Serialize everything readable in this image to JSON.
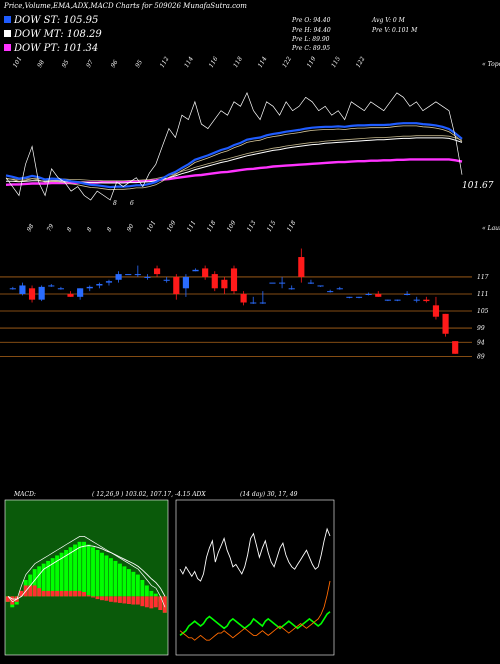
{
  "header": {
    "title": "Price,Volume,EMA,ADX,MACD Charts for 509026  MunafaSutra.com"
  },
  "legend": [
    {
      "label": "DOW ST: 105.95",
      "color": "#1f5cff"
    },
    {
      "label": "DOW MT: 108.29",
      "color": "#ffffff"
    },
    {
      "label": "DOW PT: 101.34",
      "color": "#ff33ff"
    }
  ],
  "price_info": {
    "open": "Pre  O: 94.40",
    "high": "Pre  H: 94.40",
    "low": "Pre  L: 89.90",
    "close": "Pre  C: 89.95",
    "avg_vol": "Avg V: 0  M",
    "vol": "Pre  V: 0.101 M"
  },
  "colors": {
    "up": "#2a6cff",
    "down": "#ff1a1a",
    "ema_short": "#1f5cff",
    "ema_long": "#ff33ff",
    "gridline": "#b0661a",
    "macd_bg": "#0a5a0a",
    "adx_white": "#ffffff",
    "adx_green": "#00ff00",
    "adx_orange": "#ff6a00"
  },
  "chart_data": [
    {
      "type": "line",
      "name": "ema-panel",
      "top_labels": [
        "101",
        "98",
        "95",
        "97",
        "96",
        "95",
        "112",
        "114",
        "116",
        "118",
        "114",
        "122",
        "119",
        "115",
        "122"
      ],
      "top_right_label": "« Topo",
      "last_price_label": "101.67",
      "mid_labels": [
        "8",
        "6"
      ],
      "x": [
        0,
        1,
        2,
        3,
        4,
        5,
        6,
        7,
        8,
        9,
        10,
        11,
        12,
        13,
        14,
        15,
        16,
        17,
        18,
        19,
        20,
        21,
        22,
        23,
        24,
        25,
        26,
        27,
        28,
        29,
        30,
        31,
        32,
        33,
        34,
        35,
        36,
        37,
        38,
        39,
        40,
        41,
        42,
        43,
        44,
        45,
        46,
        47,
        48,
        49,
        50,
        51,
        52,
        53,
        54,
        55,
        56,
        57,
        58,
        59,
        60,
        61,
        62,
        63,
        64,
        65,
        66,
        67,
        68,
        69,
        70
      ],
      "price": [
        101,
        99,
        97,
        104,
        108,
        100,
        97,
        103,
        101,
        100,
        98,
        99,
        97,
        96,
        98,
        97,
        96,
        100,
        99,
        100,
        101,
        99,
        102,
        104,
        108,
        112,
        110,
        115,
        114,
        118,
        113,
        112,
        114,
        116,
        115,
        118,
        117,
        120,
        116,
        114,
        118,
        117,
        115,
        118,
        116,
        117,
        119,
        118,
        116,
        117,
        115,
        116,
        114,
        118,
        117,
        116,
        118,
        117,
        116,
        118,
        120,
        119,
        117,
        118,
        116,
        117,
        118,
        117,
        116,
        110,
        101.67
      ],
      "ema_short": [
        101.5,
        101.2,
        100.8,
        101,
        101.4,
        101.1,
        100.6,
        100.8,
        100.7,
        100.5,
        100.2,
        100,
        99.7,
        99.4,
        99.3,
        99.1,
        98.9,
        99,
        99,
        99.1,
        99.3,
        99.3,
        99.6,
        100,
        100.8,
        101.7,
        102.3,
        103.2,
        104,
        105,
        105.5,
        106,
        106.6,
        107.2,
        107.6,
        108.3,
        108.8,
        109.5,
        109.8,
        110,
        110.5,
        110.8,
        111,
        111.3,
        111.5,
        111.7,
        112,
        112.2,
        112.3,
        112.4,
        112.4,
        112.5,
        112.4,
        112.6,
        112.7,
        112.7,
        112.8,
        112.8,
        112.8,
        112.9,
        113.1,
        113.2,
        113.2,
        113.2,
        113,
        112.9,
        112.7,
        112.4,
        111.9,
        110.9,
        109.7
      ],
      "ema_mid": [
        100.2,
        100.2,
        100.1,
        100.2,
        100.3,
        100.3,
        100.2,
        100.3,
        100.3,
        100.2,
        100.1,
        100.1,
        100,
        99.9,
        99.9,
        99.8,
        99.8,
        99.8,
        99.8,
        99.9,
        99.9,
        100,
        100.1,
        100.3,
        100.6,
        101,
        101.4,
        101.9,
        102.3,
        102.8,
        103.2,
        103.6,
        104,
        104.4,
        104.7,
        105.1,
        105.5,
        105.9,
        106.2,
        106.5,
        106.8,
        107.1,
        107.3,
        107.6,
        107.8,
        108,
        108.2,
        108.4,
        108.5,
        108.7,
        108.8,
        108.9,
        109,
        109.1,
        109.2,
        109.3,
        109.4,
        109.5,
        109.5,
        109.6,
        109.7,
        109.8,
        109.8,
        109.9,
        109.9,
        109.9,
        109.9,
        109.9,
        109.8,
        109.4,
        108.9
      ],
      "ema_long": [
        99.4,
        99.5,
        99.5,
        99.6,
        99.7,
        99.7,
        99.7,
        99.8,
        99.8,
        99.8,
        99.8,
        99.9,
        99.9,
        99.9,
        99.9,
        100,
        100,
        100,
        100.1,
        100.1,
        100.2,
        100.2,
        100.3,
        100.4,
        100.6,
        100.7,
        100.9,
        101.1,
        101.3,
        101.5,
        101.6,
        101.8,
        102,
        102.2,
        102.3,
        102.5,
        102.7,
        102.9,
        103,
        103.2,
        103.3,
        103.5,
        103.6,
        103.7,
        103.8,
        103.9,
        104,
        104.1,
        104.2,
        104.3,
        104.4,
        104.5,
        104.5,
        104.6,
        104.7,
        104.7,
        104.8,
        104.8,
        104.9,
        104.9,
        105,
        105,
        105.1,
        105.1,
        105.1,
        105.1,
        105.1,
        105.1,
        105.1,
        104.9,
        104.6
      ],
      "ylim": [
        96,
        124
      ]
    },
    {
      "type": "candlestick",
      "name": "price-candles",
      "top_labels": [
        "98",
        "79",
        "8",
        "8",
        "8",
        "90",
        "101",
        "109",
        "111",
        "118",
        "109",
        "113",
        "115",
        "118"
      ],
      "top_right_label": "« Lauro",
      "gridlines": [
        117,
        111,
        105,
        99,
        94,
        89
      ],
      "candles": [
        {
          "o": 113,
          "h": 113.5,
          "l": 112.5,
          "c": 113
        },
        {
          "o": 111,
          "h": 115,
          "l": 110.5,
          "c": 114
        },
        {
          "o": 113,
          "h": 114,
          "l": 108,
          "c": 109
        },
        {
          "o": 109,
          "h": 114,
          "l": 108.5,
          "c": 113.5
        },
        {
          "o": 114,
          "h": 114.5,
          "l": 113.5,
          "c": 114
        },
        {
          "o": 113,
          "h": 113.5,
          "l": 112.5,
          "c": 113
        },
        {
          "o": 111,
          "h": 112,
          "l": 110,
          "c": 110
        },
        {
          "o": 110,
          "h": 113,
          "l": 109,
          "c": 113
        },
        {
          "o": 113,
          "h": 114,
          "l": 112,
          "c": 113.5
        },
        {
          "o": 114,
          "h": 115,
          "l": 113,
          "c": 114.5
        },
        {
          "o": 115,
          "h": 116,
          "l": 114,
          "c": 115.5
        },
        {
          "o": 116,
          "h": 119,
          "l": 115,
          "c": 118
        },
        {
          "o": 118,
          "h": 118,
          "l": 118,
          "c": 118
        },
        {
          "o": 118,
          "h": 121,
          "l": 117,
          "c": 118
        },
        {
          "o": 117,
          "h": 118,
          "l": 116,
          "c": 117
        },
        {
          "o": 120,
          "h": 121,
          "l": 117,
          "c": 118
        },
        {
          "o": 116,
          "h": 117,
          "l": 115,
          "c": 116
        },
        {
          "o": 117,
          "h": 118,
          "l": 109,
          "c": 111
        },
        {
          "o": 113,
          "h": 118,
          "l": 110,
          "c": 117
        },
        {
          "o": 119,
          "h": 120,
          "l": 119,
          "c": 119.5
        },
        {
          "o": 120,
          "h": 121,
          "l": 116,
          "c": 117
        },
        {
          "o": 118,
          "h": 119,
          "l": 112,
          "c": 113
        },
        {
          "o": 116,
          "h": 117,
          "l": 111,
          "c": 113
        },
        {
          "o": 120,
          "h": 121,
          "l": 111,
          "c": 112
        },
        {
          "o": 111,
          "h": 112,
          "l": 107,
          "c": 108
        },
        {
          "o": 108,
          "h": 110,
          "l": 107.5,
          "c": 108
        },
        {
          "o": 108,
          "h": 112,
          "l": 107.5,
          "c": 108
        },
        {
          "o": 115,
          "h": 115,
          "l": 115,
          "c": 115
        },
        {
          "o": 115,
          "h": 117,
          "l": 113,
          "c": 115
        },
        {
          "o": 113,
          "h": 114,
          "l": 112.5,
          "c": 113
        },
        {
          "o": 124,
          "h": 127,
          "l": 115,
          "c": 117
        },
        {
          "o": 115,
          "h": 116,
          "l": 114.5,
          "c": 115
        },
        {
          "o": 114,
          "h": 114,
          "l": 113.5,
          "c": 114
        },
        {
          "o": 112,
          "h": 112.5,
          "l": 111.5,
          "c": 112
        },
        {
          "o": 113,
          "h": 113.5,
          "l": 112.5,
          "c": 113
        },
        {
          "o": 110,
          "h": 110,
          "l": 109.5,
          "c": 110
        },
        {
          "o": 110,
          "h": 110,
          "l": 109.5,
          "c": 110
        },
        {
          "o": 111,
          "h": 111.5,
          "l": 110.5,
          "c": 111
        },
        {
          "o": 111,
          "h": 112,
          "l": 110,
          "c": 110
        },
        {
          "o": 109,
          "h": 109,
          "l": 108.5,
          "c": 109
        },
        {
          "o": 109,
          "h": 109,
          "l": 108.5,
          "c": 109
        },
        {
          "o": 111,
          "h": 112,
          "l": 110.5,
          "c": 111
        },
        {
          "o": 109,
          "h": 110,
          "l": 108,
          "c": 109
        },
        {
          "o": 109,
          "h": 110,
          "l": 108,
          "c": 108.5
        },
        {
          "o": 107,
          "h": 110,
          "l": 102,
          "c": 103
        },
        {
          "o": 104,
          "h": 104,
          "l": 96,
          "c": 97
        },
        {
          "o": 94.4,
          "h": 94.4,
          "l": 89.9,
          "c": 89.95
        }
      ],
      "ylim": [
        86,
        130
      ]
    },
    {
      "type": "line",
      "name": "macd-panel",
      "label": "MACD:",
      "params": "( 12,26,9 ) 103.02,  107.17, -4.15 ADX",
      "macd": [
        -1,
        -2,
        -1.5,
        1,
        3,
        4,
        5,
        5.5,
        6,
        6.5,
        7,
        7.5,
        8,
        8.5,
        9,
        9.5,
        10,
        10,
        9.5,
        9,
        8.5,
        8,
        7.5,
        7,
        6.5,
        6,
        5.5,
        5,
        4.5,
        4,
        3,
        2,
        1,
        0.5,
        -1,
        -3
      ],
      "signal": [
        0,
        -0.5,
        -0.5,
        0,
        1,
        2,
        3,
        4,
        5,
        5.5,
        6,
        6.5,
        7,
        7.5,
        8,
        8.5,
        9,
        9.2,
        9.3,
        9.2,
        9,
        8.7,
        8.3,
        8,
        7.6,
        7.2,
        6.8,
        6.4,
        6,
        5.5,
        4.8,
        4,
        3.2,
        2.5,
        1.5,
        0
      ],
      "hist": [
        -1,
        -1.5,
        -1,
        1,
        2,
        2,
        2,
        1.5,
        1,
        1,
        1,
        1,
        1,
        1,
        1,
        1,
        1,
        0.8,
        0.2,
        -0.2,
        -0.5,
        -0.7,
        -0.8,
        -1,
        -1.1,
        -1.2,
        -1.3,
        -1.4,
        -1.5,
        -1.5,
        -1.8,
        -2,
        -2.2,
        -2,
        -2.5,
        -3
      ],
      "ylim": [
        -8,
        14
      ]
    },
    {
      "type": "line",
      "name": "adx-panel",
      "params": "(14 day) 30, 17, 49",
      "adx": [
        35,
        33,
        36,
        34,
        32,
        34,
        31,
        30,
        33,
        40,
        44,
        47,
        38,
        42,
        45,
        48,
        43,
        40,
        36,
        37,
        35,
        33,
        36,
        41,
        48,
        50,
        45,
        40,
        44,
        47,
        42,
        38,
        36,
        40,
        44,
        46,
        41,
        38,
        36,
        35,
        37,
        39,
        41,
        43,
        40,
        37,
        35,
        36,
        41,
        47,
        52,
        49
      ],
      "plus_di": [
        7,
        8,
        9,
        11,
        12,
        13,
        12,
        11,
        12,
        14,
        15,
        14,
        13,
        12,
        11,
        10,
        11,
        13,
        14,
        13,
        12,
        11,
        10,
        11,
        12,
        14,
        13,
        12,
        11,
        13,
        14,
        13,
        12,
        11,
        10,
        11,
        12,
        13,
        12,
        11,
        10,
        11,
        12,
        13,
        14,
        13,
        12,
        11,
        12,
        14,
        16,
        17
      ],
      "minus_di": [
        9,
        8,
        7,
        6,
        6,
        5,
        6,
        7,
        6,
        5,
        5,
        6,
        7,
        8,
        8,
        9,
        8,
        7,
        6,
        7,
        8,
        9,
        10,
        9,
        8,
        7,
        7,
        8,
        9,
        8,
        7,
        8,
        9,
        10,
        11,
        10,
        9,
        8,
        9,
        10,
        11,
        12,
        11,
        10,
        11,
        12,
        13,
        14,
        16,
        19,
        24,
        30
      ],
      "ylim": [
        0,
        60
      ]
    }
  ]
}
